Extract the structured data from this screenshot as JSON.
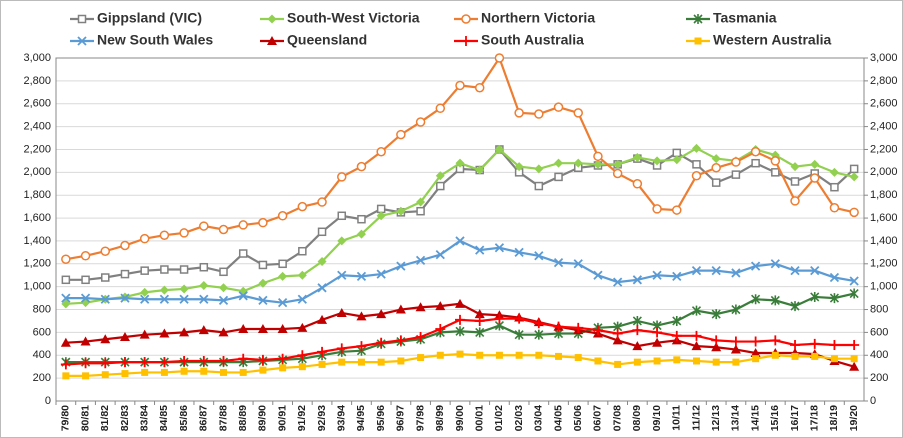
{
  "chart_data": {
    "type": "line",
    "categories": [
      "79/80",
      "80/81",
      "81/82",
      "82/83",
      "83/84",
      "84/85",
      "85/86",
      "86/87",
      "87/88",
      "88/89",
      "89/90",
      "90/91",
      "91/92",
      "92/93",
      "93/94",
      "94/95",
      "95/96",
      "96/97",
      "97/98",
      "98/99",
      "99/00",
      "00/01",
      "01/02",
      "02/03",
      "03/04",
      "04/05",
      "05/06",
      "06/07",
      "07/08",
      "08/09",
      "09/10",
      "10/11",
      "11/12",
      "12/13",
      "13/14",
      "14/15",
      "15/16",
      "16/17",
      "17/18",
      "18/19",
      "19/20"
    ],
    "series": [
      {
        "name": "Gippsland (VIC)",
        "color": "#808080",
        "marker": "square-open",
        "values": [
          1060,
          1060,
          1080,
          1110,
          1140,
          1150,
          1150,
          1170,
          1130,
          1290,
          1190,
          1200,
          1310,
          1480,
          1620,
          1590,
          1680,
          1650,
          1660,
          1880,
          2030,
          2020,
          2200,
          2000,
          1880,
          1960,
          2040,
          2060,
          2070,
          2120,
          2060,
          2170,
          2070,
          1910,
          1980,
          2080,
          2000,
          1920,
          1990,
          1870,
          2030
        ]
      },
      {
        "name": "South-West Victoria",
        "color": "#92d050",
        "marker": "diamond",
        "values": [
          850,
          860,
          890,
          910,
          950,
          970,
          980,
          1010,
          990,
          960,
          1030,
          1090,
          1100,
          1220,
          1400,
          1460,
          1620,
          1660,
          1740,
          1970,
          2080,
          2020,
          2200,
          2050,
          2030,
          2080,
          2080,
          2070,
          2070,
          2130,
          2100,
          2110,
          2210,
          2120,
          2100,
          2200,
          2150,
          2050,
          2070,
          2000,
          1960
        ]
      },
      {
        "name": "Northern Victoria",
        "color": "#ed7d31",
        "marker": "circle-open",
        "values": [
          1240,
          1270,
          1310,
          1360,
          1420,
          1450,
          1470,
          1530,
          1500,
          1540,
          1560,
          1620,
          1700,
          1740,
          1960,
          2050,
          2180,
          2330,
          2440,
          2560,
          2760,
          2740,
          3000,
          2520,
          2510,
          2570,
          2520,
          2140,
          1990,
          1900,
          1680,
          1670,
          1970,
          2040,
          2090,
          2180,
          2100,
          1750,
          1950,
          1690,
          1650
        ]
      },
      {
        "name": "Tasmania",
        "color": "#3a7d3a",
        "marker": "star",
        "values": [
          340,
          340,
          340,
          340,
          340,
          340,
          340,
          340,
          340,
          340,
          350,
          360,
          370,
          400,
          430,
          440,
          500,
          520,
          540,
          600,
          610,
          600,
          660,
          580,
          580,
          590,
          590,
          640,
          650,
          700,
          660,
          700,
          790,
          760,
          800,
          890,
          880,
          830,
          910,
          900,
          940
        ]
      },
      {
        "name": "New South Wales",
        "color": "#5b9bd5",
        "marker": "x",
        "values": [
          900,
          900,
          890,
          900,
          890,
          890,
          890,
          890,
          880,
          920,
          880,
          860,
          890,
          990,
          1100,
          1090,
          1110,
          1180,
          1230,
          1280,
          1400,
          1320,
          1340,
          1300,
          1270,
          1210,
          1200,
          1100,
          1040,
          1060,
          1100,
          1090,
          1140,
          1140,
          1120,
          1180,
          1200,
          1140,
          1140,
          1080,
          1050
        ]
      },
      {
        "name": "Queensland",
        "color": "#c00000",
        "marker": "triangle",
        "values": [
          510,
          520,
          540,
          560,
          580,
          590,
          600,
          620,
          600,
          630,
          630,
          630,
          640,
          710,
          770,
          740,
          760,
          800,
          820,
          830,
          850,
          760,
          750,
          730,
          690,
          650,
          620,
          590,
          530,
          480,
          510,
          530,
          480,
          470,
          450,
          420,
          420,
          420,
          410,
          350,
          300
        ]
      },
      {
        "name": "South Australia",
        "color": "#ff0000",
        "marker": "plus",
        "values": [
          320,
          330,
          330,
          340,
          340,
          340,
          350,
          350,
          350,
          370,
          360,
          370,
          400,
          430,
          460,
          480,
          510,
          530,
          560,
          630,
          710,
          700,
          720,
          720,
          680,
          650,
          640,
          620,
          590,
          620,
          600,
          570,
          570,
          530,
          520,
          520,
          530,
          490,
          500,
          490,
          490
        ]
      },
      {
        "name": "Western Australia",
        "color": "#ffc000",
        "marker": "square",
        "values": [
          220,
          220,
          230,
          240,
          250,
          250,
          260,
          260,
          250,
          250,
          270,
          290,
          300,
          320,
          340,
          340,
          340,
          350,
          380,
          400,
          410,
          400,
          400,
          400,
          400,
          390,
          380,
          350,
          320,
          340,
          350,
          360,
          350,
          340,
          340,
          370,
          400,
          390,
          390,
          370,
          370
        ]
      }
    ],
    "ylim": [
      0,
      3000
    ],
    "yticks": [
      0,
      200,
      400,
      600,
      800,
      {
        "value": 1000,
        "label": "1,000"
      },
      {
        "value": 1200,
        "label": "1,200"
      },
      {
        "value": 1400,
        "label": "1,400"
      },
      {
        "value": 1600,
        "label": "1,600"
      },
      {
        "value": 1800,
        "label": "1,800"
      },
      {
        "value": 2000,
        "label": "2,000"
      },
      {
        "value": 2200,
        "label": "2,200"
      },
      {
        "value": 2400,
        "label": "2,400"
      },
      {
        "value": 2600,
        "label": "2,600"
      },
      {
        "value": 2800,
        "label": "2,800"
      },
      {
        "value": 3000,
        "label": "3,000"
      }
    ],
    "y2lim": [
      0,
      3000
    ],
    "y2ticks": [
      0,
      200,
      400,
      600,
      800,
      {
        "value": 1000,
        "label": "1,000"
      },
      {
        "value": 1200,
        "label": "1,200"
      },
      {
        "value": 1400,
        "label": "1,400"
      },
      {
        "value": 1600,
        "label": "1,600"
      },
      {
        "value": 1800,
        "label": "1,800"
      },
      {
        "value": 2000,
        "label": "2,000"
      },
      {
        "value": 2200,
        "label": "2,200"
      },
      {
        "value": 2400,
        "label": "2,400"
      },
      {
        "value": 2600,
        "label": "2,600"
      },
      {
        "value": 2800,
        "label": "2,800"
      },
      {
        "value": 3000,
        "label": "3,000"
      }
    ],
    "grid": true
  }
}
